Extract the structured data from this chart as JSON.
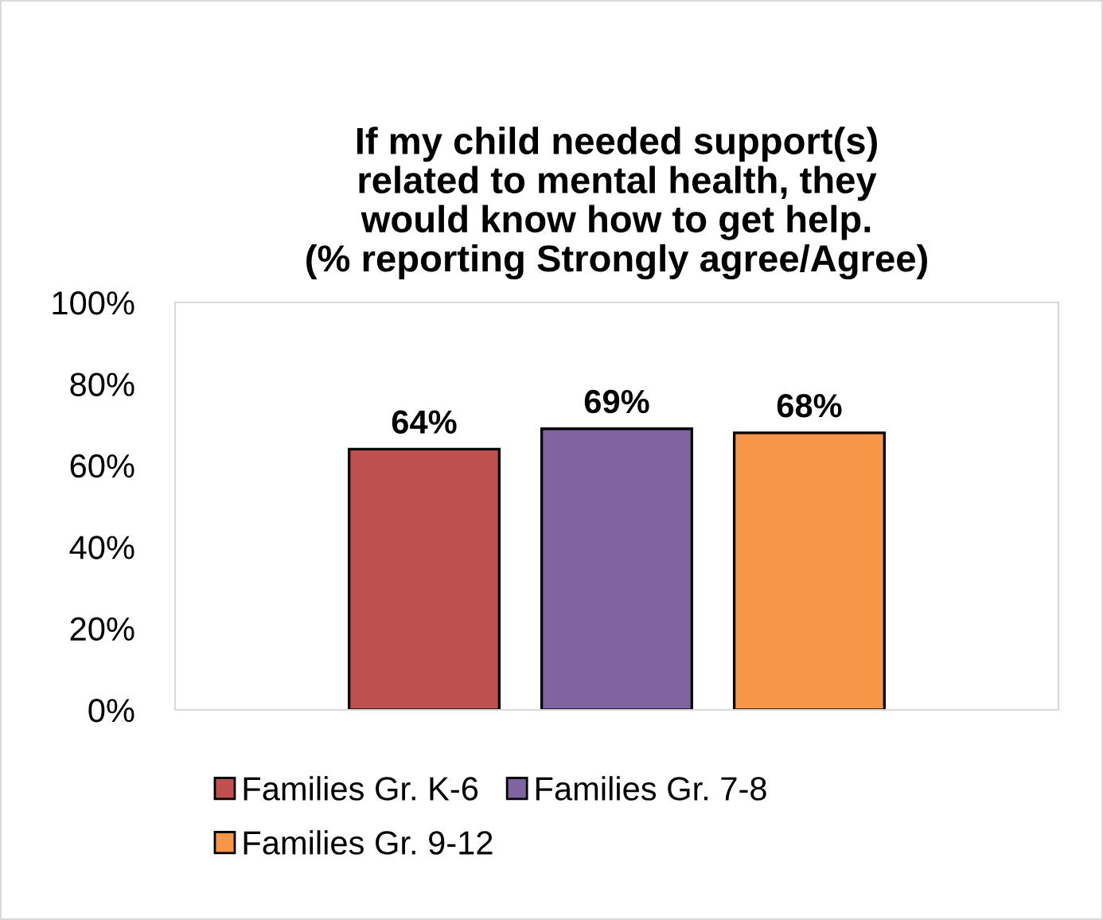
{
  "chart_data": {
    "type": "bar",
    "title": "If my child needed support(s)\nrelated to mental health, they\nwould know how to get help.\n(% reporting Strongly agree/Agree)",
    "categories": [
      null
    ],
    "series": [
      {
        "name": "Families Gr. K-6",
        "color": "#c0504d",
        "values": [
          64
        ],
        "value_labels": [
          "64%"
        ]
      },
      {
        "name": "Families Gr. 7-8",
        "color": "#8064a2",
        "values": [
          69
        ],
        "value_labels": [
          "69%"
        ]
      },
      {
        "name": "Families Gr. 9-12",
        "color": "#f79646",
        "values": [
          68
        ],
        "value_labels": [
          "68%"
        ]
      }
    ],
    "ylim": [
      0,
      100
    ],
    "yticks": [
      {
        "value": 0,
        "label": "0%"
      },
      {
        "value": 20,
        "label": "20%"
      },
      {
        "value": 40,
        "label": "40%"
      },
      {
        "value": 60,
        "label": "60%"
      },
      {
        "value": 80,
        "label": "80%"
      },
      {
        "value": 100,
        "label": "100%"
      }
    ],
    "grid": false,
    "legend": "bottom"
  }
}
